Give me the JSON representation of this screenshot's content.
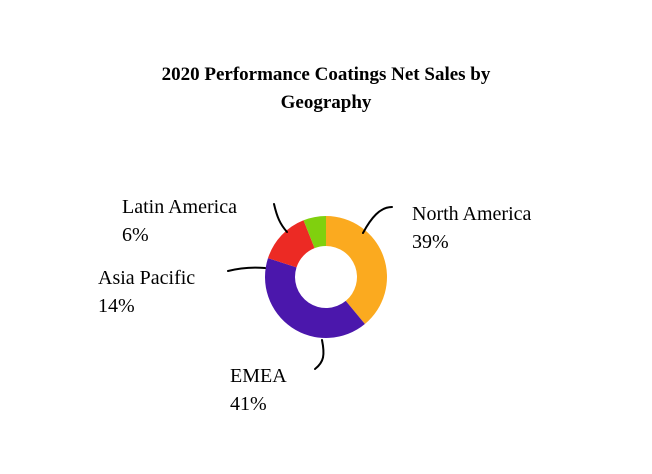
{
  "chart_data": {
    "type": "pie",
    "variant": "donut",
    "title": "2020 Performance Coatings Net Sales by Geography",
    "title_lines": [
      "2020 Performance Coatings Net Sales by",
      "Geography"
    ],
    "categories": [
      "North America",
      "EMEA",
      "Asia Pacific",
      "Latin America"
    ],
    "values": [
      39,
      41,
      14,
      6
    ],
    "value_labels": [
      "39%",
      "41%",
      "14%",
      "6%"
    ],
    "colors": [
      "#FBAA1F",
      "#4B17AC",
      "#EC2A24",
      "#80D00E"
    ],
    "start": "top",
    "direction": "clockwise",
    "legend": "none"
  }
}
